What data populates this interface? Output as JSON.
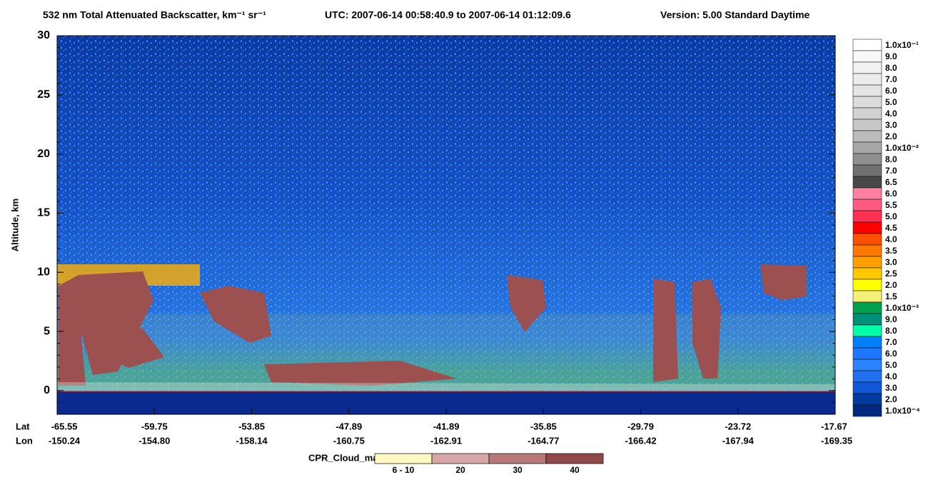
{
  "chart_data": {
    "type": "heatmap",
    "title": "532 nm Total Attenuated Backscatter, km⁻¹ sr⁻¹",
    "time_range": "UTC:  2007-06-14 00:58:40.9  to  2007-06-14 01:12:09.6",
    "version": "Version: 5.00  Standard  Daytime",
    "ylabel": "Altitude, km",
    "ylim": [
      -2,
      30
    ],
    "yticks": [
      0,
      5,
      10,
      15,
      20,
      25,
      30
    ],
    "x_headers": [
      "Lat",
      "Lon"
    ],
    "lat": [
      "-65.55",
      "-59.75",
      "-53.85",
      "-47.89",
      "-41.89",
      "-35.85",
      "-29.79",
      "-23.72",
      "-17.67"
    ],
    "lon": [
      "-150.24",
      "-154.80",
      "-158.14",
      "-160.75",
      "-162.91",
      "-164.77",
      "-166.42",
      "-167.94",
      "-169.35"
    ],
    "colorbar": {
      "labels": [
        "1.0x10⁻¹",
        "9.0",
        "8.0",
        "7.0",
        "6.0",
        "5.0",
        "4.0",
        "3.0",
        "2.0",
        "1.0x10⁻²",
        "8.0",
        "7.0",
        "6.5",
        "6.0",
        "5.5",
        "5.0",
        "4.5",
        "4.0",
        "3.5",
        "3.0",
        "2.5",
        "2.0",
        "1.5",
        "1.0x10⁻³",
        "9.0",
        "8.0",
        "7.0",
        "6.0",
        "5.0",
        "4.0",
        "3.0",
        "2.0",
        "1.0x10⁻⁴"
      ],
      "colors": [
        "#ffffff",
        "#f8f8f8",
        "#f2f2f2",
        "#ececec",
        "#e4e4e4",
        "#dcdcdc",
        "#d2d2d2",
        "#c8c8c8",
        "#bcbcbc",
        "#a8a8a8",
        "#909090",
        "#707070",
        "#484848",
        "#ff80a0",
        "#ff5a80",
        "#ff3050",
        "#ff0000",
        "#ff5000",
        "#ff7800",
        "#ffa000",
        "#ffc800",
        "#ffff00",
        "#f5f07a",
        "#00a050",
        "#00907a",
        "#00ffa8",
        "#0080ff",
        "#1e78ff",
        "#2a84ff",
        "#2070f0",
        "#1058d8",
        "#003ca0",
        "#002a80"
      ]
    },
    "cpr_legend": {
      "title": "CPR_Cloud_mask",
      "labels": [
        "6 - 10",
        "20",
        "30",
        "40"
      ],
      "colors": [
        "#fff8c0",
        "#d8a8a8",
        "#b87878",
        "#904848"
      ]
    }
  }
}
